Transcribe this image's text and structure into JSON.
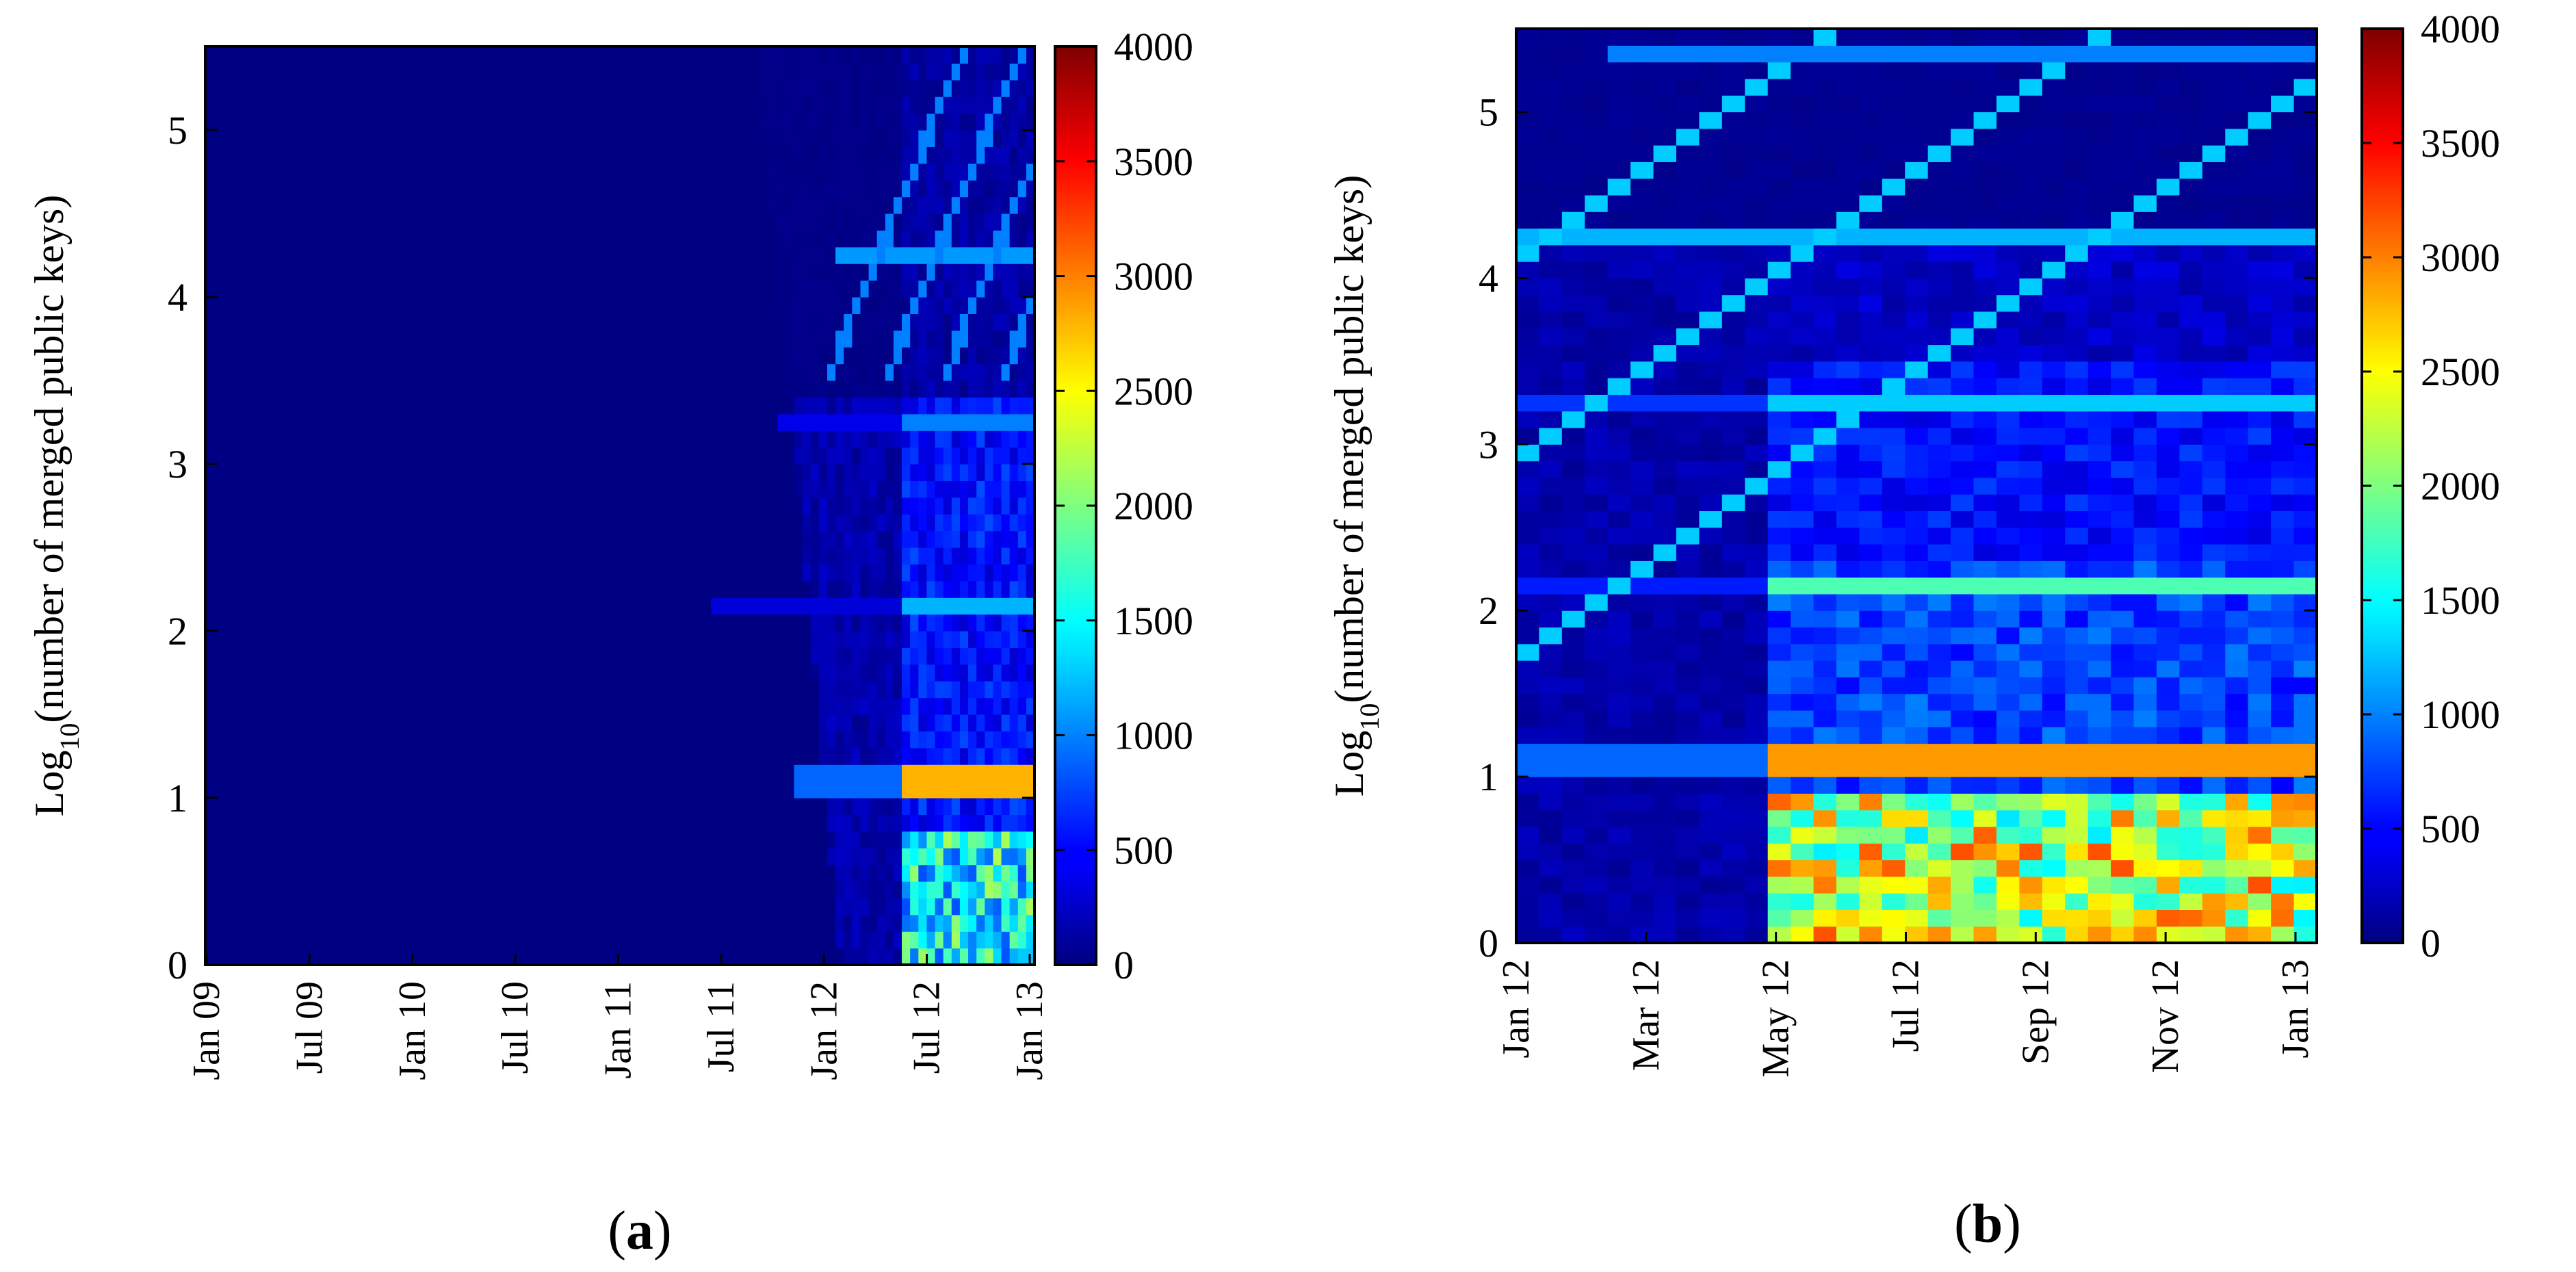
{
  "chart_data": [
    {
      "type": "heatmap",
      "panel_label": "a",
      "ylabel": "Log10(number of merged public keys)",
      "ylabel_main": "Log",
      "ylabel_sub": "10",
      "ylabel_rest": "(number of merged public keys)",
      "xlabel": "",
      "x_ticks": [
        "Jan 09",
        "Jul 09",
        "Jan 10",
        "Jul 10",
        "Jan 11",
        "Jul 11",
        "Jan 12",
        "Jul 12",
        "Jan 13"
      ],
      "x_range": [
        "Jan 09",
        "Jan 13"
      ],
      "n_columns": 100,
      "y_ticks": [
        "0",
        "1",
        "2",
        "3",
        "4",
        "5"
      ],
      "ylim": [
        0,
        5.5
      ],
      "colorbar": {
        "min": 0,
        "max": 4000,
        "ticks": [
          "0",
          "500",
          "1000",
          "1500",
          "2000",
          "2500",
          "3000",
          "3500",
          "4000"
        ],
        "colormap": "jet"
      },
      "background_value": 15
    },
    {
      "type": "heatmap",
      "panel_label": "b",
      "ylabel": "Log10(number of merged public keys)",
      "ylabel_main": "Log",
      "ylabel_sub": "10",
      "ylabel_rest": "(number of merged public keys)",
      "xlabel": "",
      "x_ticks": [
        "Jan 12",
        "Mar 12",
        "May 12",
        "Jul 12",
        "Sep 12",
        "Nov 12",
        "Jan 13"
      ],
      "x_range": [
        "Jan 12",
        "Jan 13"
      ],
      "n_columns": 35,
      "y_ticks": [
        "0",
        "1",
        "2",
        "3",
        "4",
        "5"
      ],
      "ylim": [
        0,
        5.5
      ],
      "colorbar": {
        "min": 0,
        "max": 4000,
        "ticks": [
          "0",
          "500",
          "1000",
          "1500",
          "2000",
          "2500",
          "3000",
          "3500",
          "4000"
        ],
        "colormap": "jet"
      },
      "background_value": 15
    }
  ]
}
